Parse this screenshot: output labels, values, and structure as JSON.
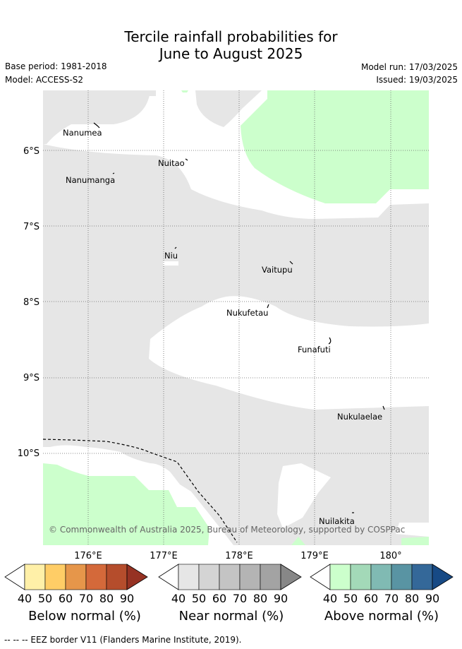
{
  "title": {
    "line1": "Tercile rainfall probabilities for",
    "line2": "June to August 2025"
  },
  "meta": {
    "base_period": "Base period: 1981-2018",
    "model": "Model: ACCESS-S2",
    "model_run": "Model run: 17/03/2025",
    "issued": "Issued: 19/03/2025"
  },
  "map": {
    "lon_ticks": [
      "176°E",
      "177°E",
      "178°E",
      "179°E",
      "180°"
    ],
    "lat_ticks": [
      "6°S",
      "7°S",
      "8°S",
      "9°S",
      "10°S"
    ],
    "islands": [
      "Nanumea",
      "Nuitao",
      "Nanumanga",
      "Niu",
      "Vaitupu",
      "Nukufetau",
      "Funafuti",
      "Nukulaelae",
      "Nuilakita"
    ],
    "copyright": "© Commonwealth of Australia 2025, Bureau of Meteorology, supported by COSPPac",
    "colors": {
      "near_normal_40": "#e6e6e6",
      "above_normal_40": "#ccffcc",
      "no_signal": "#ffffff"
    }
  },
  "legends": [
    {
      "title": "Below normal (%)",
      "ticks": [
        "40",
        "50",
        "60",
        "70",
        "80",
        "90"
      ],
      "colors": [
        "#fff0a8",
        "#ffcd66",
        "#e6964a",
        "#d4693a",
        "#b54d2c",
        "#963223"
      ]
    },
    {
      "title": "Near normal (%)",
      "ticks": [
        "40",
        "50",
        "60",
        "70",
        "80",
        "90"
      ],
      "colors": [
        "#e6e6e6",
        "#d4d4d4",
        "#c4c4c4",
        "#b4b4b4",
        "#a3a3a3",
        "#878787"
      ]
    },
    {
      "title": "Above normal (%)",
      "ticks": [
        "40",
        "50",
        "60",
        "70",
        "80",
        "90"
      ],
      "colors": [
        "#ccffcc",
        "#a3d9b8",
        "#80bab3",
        "#5994a3",
        "#346899",
        "#174a85"
      ]
    }
  ],
  "footnote": "-- -- -- EEZ border V11 (Flanders Marine Institute, 2019)."
}
